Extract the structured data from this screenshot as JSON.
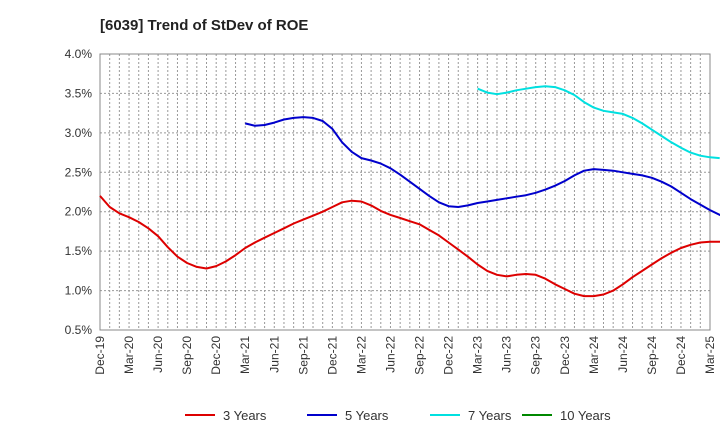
{
  "chart_data": {
    "type": "line",
    "title": "[6039]  Trend of StDev of ROE",
    "xlabel": "",
    "ylabel": "",
    "x_ticks": [
      "Dec-19",
      "Mar-20",
      "Jun-20",
      "Sep-20",
      "Dec-20",
      "Mar-21",
      "Jun-21",
      "Sep-21",
      "Dec-21",
      "Mar-22",
      "Jun-22",
      "Sep-22",
      "Dec-22",
      "Mar-23",
      "Jun-23",
      "Sep-23",
      "Dec-23",
      "Mar-24",
      "Jun-24",
      "Sep-24",
      "Dec-24",
      "Mar-25"
    ],
    "y_ticks": [
      "0.5%",
      "1.0%",
      "1.5%",
      "2.0%",
      "2.5%",
      "3.0%",
      "3.5%",
      "4.0%"
    ],
    "ylim": [
      0.5,
      4.0
    ],
    "grid": true,
    "legend_position": "bottom",
    "series": [
      {
        "name": "3 Years",
        "color": "#dd0000",
        "start_month": 0,
        "values": [
          2.2,
          2.06,
          1.98,
          1.93,
          1.87,
          1.79,
          1.69,
          1.55,
          1.43,
          1.35,
          1.3,
          1.28,
          1.31,
          1.37,
          1.45,
          1.54,
          1.61,
          1.67,
          1.73,
          1.79,
          1.85,
          1.9,
          1.95,
          2.0,
          2.06,
          2.12,
          2.14,
          2.13,
          2.08,
          2.01,
          1.96,
          1.92,
          1.88,
          1.84,
          1.77,
          1.7,
          1.61,
          1.52,
          1.43,
          1.33,
          1.25,
          1.2,
          1.18,
          1.2,
          1.21,
          1.2,
          1.15,
          1.08,
          1.02,
          0.96,
          0.93,
          0.93,
          0.95,
          1.0,
          1.08,
          1.17,
          1.25,
          1.33,
          1.41,
          1.48,
          1.54,
          1.58,
          1.61,
          1.62,
          1.62,
          1.61,
          1.6,
          1.59,
          1.58,
          1.58,
          1.59,
          1.6,
          1.61,
          1.62,
          1.64
        ]
      },
      {
        "name": "5 Years",
        "color": "#0000cc",
        "start_month": 15,
        "values": [
          3.12,
          3.09,
          3.1,
          3.13,
          3.17,
          3.19,
          3.2,
          3.19,
          3.15,
          3.05,
          2.88,
          2.76,
          2.68,
          2.65,
          2.61,
          2.55,
          2.47,
          2.38,
          2.29,
          2.2,
          2.12,
          2.07,
          2.06,
          2.08,
          2.11,
          2.13,
          2.15,
          2.17,
          2.19,
          2.21,
          2.24,
          2.28,
          2.33,
          2.39,
          2.46,
          2.52,
          2.54,
          2.53,
          2.52,
          2.5,
          2.48,
          2.46,
          2.43,
          2.38,
          2.32,
          2.24,
          2.16,
          2.09,
          2.02,
          1.96,
          1.92,
          1.89,
          1.88
        ]
      },
      {
        "name": "7 Years",
        "color": "#00e0e0",
        "start_month": 39,
        "values": [
          3.56,
          3.51,
          3.49,
          3.51,
          3.54,
          3.56,
          3.58,
          3.59,
          3.58,
          3.54,
          3.48,
          3.39,
          3.32,
          3.28,
          3.26,
          3.24,
          3.19,
          3.12,
          3.04,
          2.96,
          2.88,
          2.81,
          2.75,
          2.71,
          2.69,
          2.68
        ]
      },
      {
        "name": "10 Years",
        "color": "#008800",
        "start_month": 0,
        "values": []
      }
    ]
  }
}
